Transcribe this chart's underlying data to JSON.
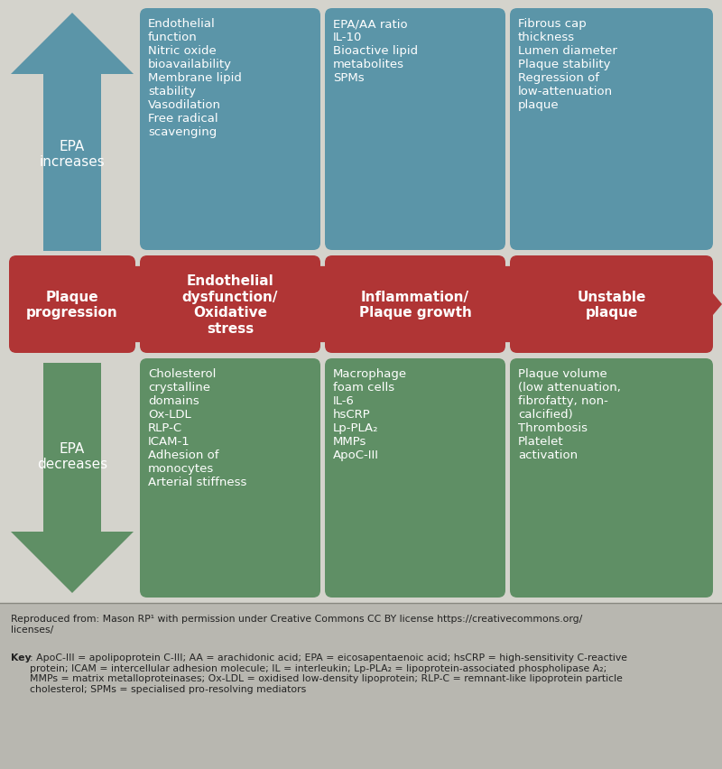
{
  "bg_color": "#d4d3cc",
  "blue_color": "#5b95a8",
  "red_color": "#b03535",
  "green_color": "#5f8f65",
  "footer_bg": "#b8b7b0",
  "top_boxes": [
    {
      "text": "Endothelial\nfunction\nNitric oxide\nbioavailability\nMembrane lipid\nstability\nVasodilation\nFree radical\nscavenging"
    },
    {
      "text": "EPA/AA ratio\nIL-10\nBioactive lipid\nmetabolites\nSPMs"
    },
    {
      "text": "Fibrous cap\nthickness\nLumen diameter\nPlaque stability\nRegression of\nlow-attenuation\nplaque"
    }
  ],
  "mid_boxes": [
    {
      "text": "Plaque\nprogression"
    },
    {
      "text": "Endothelial\ndysfunction/\nOxidative\nstress"
    },
    {
      "text": "Inflammation/\nPlaque growth"
    },
    {
      "text": "Unstable\nplaque"
    }
  ],
  "bot_boxes": [
    {
      "text": "Cholesterol\ncrystalline\ndomains\nOx-LDL\nRLP-C\nICAM-1\nAdhesion of\nmonocytes\nArterial stiffness"
    },
    {
      "text": "Macrophage\nfoam cells\nIL-6\nhsCRP\nLp-PLA₂\nMMPs\nApoC-III"
    },
    {
      "text": "Plaque volume\n(low attenuation,\nfibrofatty, non-\ncalcified)\nThrombosis\nPlatelet\nactivation"
    }
  ],
  "epa_increases_text": "EPA\nincreases",
  "epa_decreases_text": "EPA\ndecreases",
  "footer_text1": "Reproduced from: Mason RP¹ with permission under Creative Commons CC BY license https://creativecommons.org/\nlicenses/",
  "footer_text2": ": ApoC-III = apolipoprotein C-III; AA = arachidonic acid; EPA = eicosapentaenoic acid; hsCRP = high-sensitivity C-reactive\nprotein; ICAM = intercellular adhesion molecule; IL = interleukin; Lp-PLA₂ = lipoprotein-associated phospholipase A₂;\nMMPs = matrix metalloproteinases; Ox-LDL = oxidised low-density lipoprotein; RLP-C = remnant-like lipoprotein particle\ncholesterol; SPMs = specialised pro-resolving mediators"
}
